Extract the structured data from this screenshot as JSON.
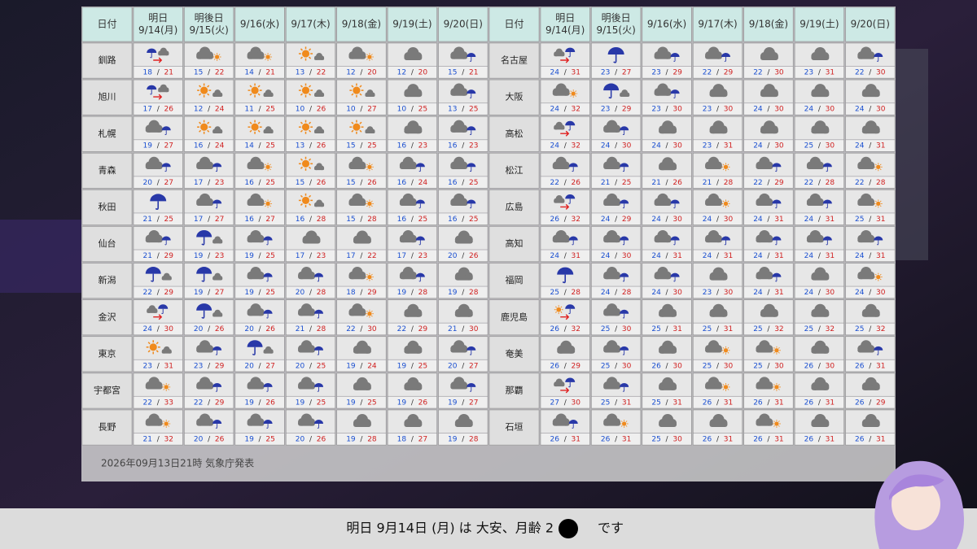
{
  "table": {
    "separator": "/",
    "header": [
      {
        "lines": [
          "日付"
        ]
      },
      {
        "lines": [
          "明日",
          "9/14(月)"
        ]
      },
      {
        "lines": [
          "明後日",
          "9/15(火)"
        ]
      },
      {
        "lines": [
          "9/16(水)"
        ]
      },
      {
        "lines": [
          "9/17(木)"
        ]
      },
      {
        "lines": [
          "9/18(金)"
        ]
      },
      {
        "lines": [
          "9/19(土)"
        ]
      },
      {
        "lines": [
          "9/20(日)"
        ]
      }
    ],
    "left": [
      {
        "city": "釧路",
        "days": [
          [
            18,
            21
          ],
          [
            15,
            22
          ],
          [
            14,
            21
          ],
          [
            13,
            22
          ],
          [
            12,
            20
          ],
          [
            12,
            20
          ],
          [
            15,
            21
          ]
        ]
      },
      {
        "city": "旭川",
        "days": [
          [
            17,
            26
          ],
          [
            12,
            24
          ],
          [
            11,
            25
          ],
          [
            10,
            26
          ],
          [
            10,
            27
          ],
          [
            10,
            25
          ],
          [
            13,
            25
          ]
        ]
      },
      {
        "city": "札幌",
        "days": [
          [
            19,
            27
          ],
          [
            16,
            24
          ],
          [
            14,
            25
          ],
          [
            13,
            26
          ],
          [
            15,
            25
          ],
          [
            16,
            23
          ],
          [
            16,
            23
          ]
        ]
      },
      {
        "city": "青森",
        "days": [
          [
            20,
            27
          ],
          [
            17,
            23
          ],
          [
            16,
            25
          ],
          [
            15,
            26
          ],
          [
            15,
            26
          ],
          [
            16,
            24
          ],
          [
            16,
            25
          ]
        ]
      },
      {
        "city": "秋田",
        "days": [
          [
            21,
            25
          ],
          [
            17,
            27
          ],
          [
            16,
            27
          ],
          [
            16,
            28
          ],
          [
            15,
            28
          ],
          [
            16,
            25
          ],
          [
            16,
            25
          ]
        ]
      },
      {
        "city": "仙台",
        "days": [
          [
            21,
            29
          ],
          [
            19,
            23
          ],
          [
            19,
            25
          ],
          [
            17,
            23
          ],
          [
            17,
            22
          ],
          [
            17,
            23
          ],
          [
            20,
            26
          ]
        ]
      },
      {
        "city": "新潟",
        "days": [
          [
            22,
            29
          ],
          [
            19,
            27
          ],
          [
            19,
            25
          ],
          [
            20,
            28
          ],
          [
            18,
            29
          ],
          [
            19,
            28
          ],
          [
            19,
            28
          ]
        ]
      },
      {
        "city": "金沢",
        "days": [
          [
            24,
            30
          ],
          [
            20,
            26
          ],
          [
            20,
            26
          ],
          [
            21,
            28
          ],
          [
            22,
            30
          ],
          [
            22,
            29
          ],
          [
            21,
            30
          ]
        ]
      },
      {
        "city": "東京",
        "days": [
          [
            23,
            31
          ],
          [
            23,
            29
          ],
          [
            20,
            27
          ],
          [
            20,
            25
          ],
          [
            19,
            24
          ],
          [
            19,
            25
          ],
          [
            20,
            27
          ]
        ]
      },
      {
        "city": "宇都宮",
        "days": [
          [
            22,
            33
          ],
          [
            22,
            29
          ],
          [
            19,
            26
          ],
          [
            19,
            25
          ],
          [
            19,
            25
          ],
          [
            19,
            26
          ],
          [
            19,
            27
          ]
        ]
      },
      {
        "city": "長野",
        "days": [
          [
            21,
            32
          ],
          [
            20,
            26
          ],
          [
            19,
            25
          ],
          [
            20,
            26
          ],
          [
            19,
            28
          ],
          [
            18,
            27
          ],
          [
            19,
            28
          ]
        ]
      }
    ],
    "right": [
      {
        "city": "名古屋",
        "days": [
          [
            24,
            31
          ],
          [
            23,
            27
          ],
          [
            23,
            29
          ],
          [
            22,
            29
          ],
          [
            22,
            30
          ],
          [
            23,
            31
          ],
          [
            22,
            30
          ]
        ]
      },
      {
        "city": "大阪",
        "days": [
          [
            24,
            32
          ],
          [
            23,
            29
          ],
          [
            23,
            30
          ],
          [
            23,
            30
          ],
          [
            24,
            30
          ],
          [
            24,
            30
          ],
          [
            24,
            30
          ]
        ]
      },
      {
        "city": "高松",
        "days": [
          [
            24,
            32
          ],
          [
            24,
            30
          ],
          [
            24,
            30
          ],
          [
            23,
            31
          ],
          [
            24,
            30
          ],
          [
            25,
            30
          ],
          [
            24,
            31
          ]
        ]
      },
      {
        "city": "松江",
        "days": [
          [
            22,
            26
          ],
          [
            21,
            25
          ],
          [
            21,
            26
          ],
          [
            21,
            28
          ],
          [
            22,
            29
          ],
          [
            22,
            28
          ],
          [
            22,
            28
          ]
        ]
      },
      {
        "city": "広島",
        "days": [
          [
            26,
            32
          ],
          [
            24,
            29
          ],
          [
            24,
            30
          ],
          [
            24,
            30
          ],
          [
            24,
            31
          ],
          [
            24,
            31
          ],
          [
            25,
            31
          ]
        ]
      },
      {
        "city": "高知",
        "days": [
          [
            24,
            31
          ],
          [
            24,
            30
          ],
          [
            24,
            31
          ],
          [
            24,
            31
          ],
          [
            24,
            31
          ],
          [
            24,
            31
          ],
          [
            24,
            31
          ]
        ]
      },
      {
        "city": "福岡",
        "days": [
          [
            25,
            28
          ],
          [
            24,
            28
          ],
          [
            24,
            30
          ],
          [
            23,
            30
          ],
          [
            24,
            31
          ],
          [
            24,
            30
          ],
          [
            24,
            30
          ]
        ]
      },
      {
        "city": "鹿児島",
        "days": [
          [
            26,
            32
          ],
          [
            25,
            30
          ],
          [
            25,
            31
          ],
          [
            25,
            31
          ],
          [
            25,
            32
          ],
          [
            25,
            32
          ],
          [
            25,
            32
          ]
        ]
      },
      {
        "city": "奄美",
        "days": [
          [
            26,
            29
          ],
          [
            25,
            30
          ],
          [
            26,
            30
          ],
          [
            25,
            30
          ],
          [
            25,
            30
          ],
          [
            26,
            30
          ],
          [
            26,
            31
          ]
        ]
      },
      {
        "city": "那覇",
        "days": [
          [
            27,
            30
          ],
          [
            25,
            31
          ],
          [
            25,
            31
          ],
          [
            26,
            31
          ],
          [
            26,
            31
          ],
          [
            26,
            31
          ],
          [
            26,
            29
          ]
        ]
      },
      {
        "city": "石垣",
        "days": [
          [
            26,
            31
          ],
          [
            26,
            31
          ],
          [
            25,
            30
          ],
          [
            26,
            31
          ],
          [
            26,
            31
          ],
          [
            26,
            31
          ],
          [
            26,
            31
          ]
        ]
      }
    ]
  },
  "footer": "2026年09月13日21時 気象庁発表",
  "caption": {
    "before": "明日 9月14日 (月) は 大安、月齢 2",
    "after": "です"
  }
}
